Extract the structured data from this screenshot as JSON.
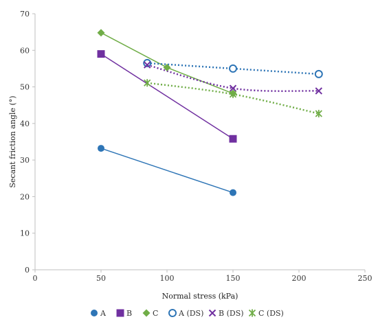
{
  "chart_data": {
    "type": "line",
    "xlabel": "Normal stress (kPa)",
    "ylabel": "Secant friction angle (°)",
    "xlim": [
      0,
      250
    ],
    "ylim": [
      0,
      70
    ],
    "xticks": [
      0,
      50,
      100,
      150,
      200,
      250
    ],
    "yticks": [
      0,
      10,
      20,
      30,
      40,
      50,
      60,
      70
    ],
    "grid": false,
    "legend_position": "bottom",
    "series": [
      {
        "name": "A",
        "color": "#2E75B6",
        "marker": "circle-filled",
        "line": "solid",
        "points": [
          [
            50,
            33.2
          ],
          [
            150,
            21.1
          ]
        ]
      },
      {
        "name": "B",
        "color": "#7030A0",
        "marker": "square-filled",
        "line": "solid",
        "points": [
          [
            50,
            59.0
          ],
          [
            150,
            35.8
          ]
        ]
      },
      {
        "name": "C",
        "color": "#70AD47",
        "marker": "diamond-filled",
        "line": "solid",
        "points": [
          [
            50,
            64.8
          ],
          [
            100,
            55.3
          ],
          [
            150,
            48.2
          ]
        ]
      },
      {
        "name": "A (DS)",
        "color": "#2E75B6",
        "marker": "circle-open",
        "line": "dotted",
        "points": [
          [
            85,
            56.5
          ],
          [
            150,
            55.0
          ],
          [
            215,
            53.5
          ]
        ]
      },
      {
        "name": "B (DS)",
        "color": "#7030A0",
        "marker": "x",
        "line": "dotted",
        "points": [
          [
            85,
            56.0
          ],
          [
            150,
            49.6
          ],
          [
            215,
            48.9
          ]
        ]
      },
      {
        "name": "C (DS)",
        "color": "#70AD47",
        "marker": "asterisk",
        "line": "dotted",
        "points": [
          [
            85,
            51.1
          ],
          [
            150,
            48.0
          ],
          [
            215,
            42.7
          ]
        ]
      }
    ]
  }
}
